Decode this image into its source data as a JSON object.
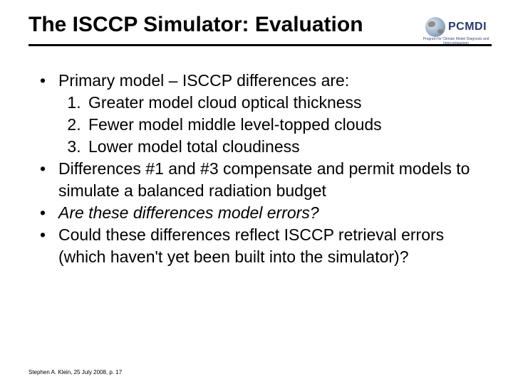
{
  "title": "The ISCCP Simulator: Evaluation",
  "logo": {
    "text": "PCMDI",
    "subtext": "Program for Climate Model Diagnosis and Intercomparison"
  },
  "bullets": [
    {
      "text": "Primary model – ISCCP differences are:",
      "sub": [
        "Greater model cloud optical thickness",
        "Fewer model middle level-topped clouds",
        "Lower model total cloudiness"
      ]
    },
    {
      "text": "Differences #1 and #3 compensate and permit models to simulate a balanced radiation budget"
    },
    {
      "text": "Are these differences model errors?",
      "italic": true
    },
    {
      "text": "Could these differences reflect ISCCP retrieval errors (which haven't yet been built into the simulator)?"
    }
  ],
  "footer": "Stephen A. Klein, 25 July 2008, p. 17",
  "colors": {
    "background": "#ffffff",
    "text": "#000000",
    "rule": "#000000",
    "logo_text": "#2a3a6a"
  },
  "fonts": {
    "title_size_pt": 30,
    "body_size_pt": 23,
    "footer_size_pt": 8,
    "family": "Arial"
  }
}
